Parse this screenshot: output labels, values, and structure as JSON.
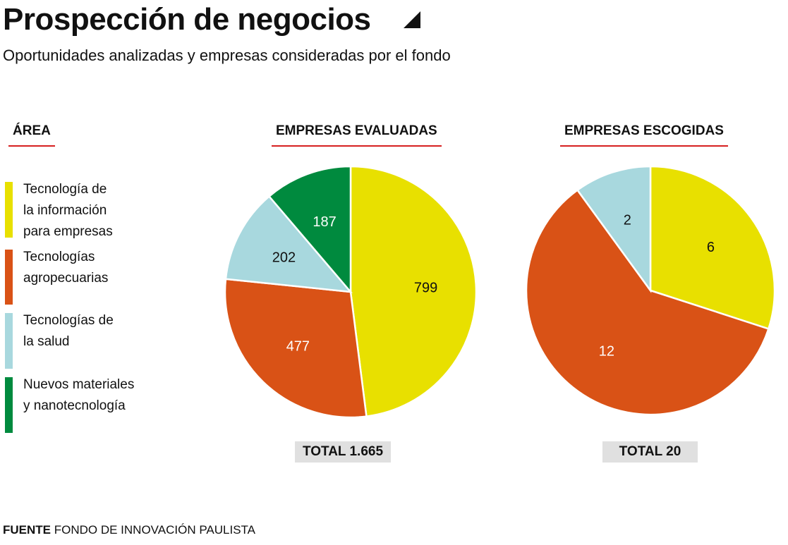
{
  "title": "Prospección de negocios",
  "subtitle": "Oportunidades analizadas y empresas consideradas por el fondo",
  "legend": {
    "heading": "ÁREA",
    "items": [
      {
        "label_lines": [
          "Tecnología de",
          "la información",
          "para empresas"
        ],
        "color": "#e8e000"
      },
      {
        "label_lines": [
          "Tecnologías",
          "agropecuarias"
        ],
        "color": "#d95216"
      },
      {
        "label_lines": [
          "Tecnologías de",
          "la salud"
        ],
        "color": "#a8d8de"
      },
      {
        "label_lines": [
          "Nuevos materiales",
          "y nanotecnología"
        ],
        "color": "#008a3e"
      }
    ]
  },
  "chart_data": [
    {
      "type": "pie",
      "title": "EMPRESAS EVALUADAS",
      "categories": [
        "Tecnología de la información para empresas",
        "Tecnologías agropecuarias",
        "Tecnologías de la salud",
        "Nuevos materiales y nanotecnología"
      ],
      "values": [
        799,
        477,
        202,
        187
      ],
      "labels": [
        "799",
        "477",
        "202",
        "187"
      ],
      "colors": [
        "#e8e000",
        "#d95216",
        "#a8d8de",
        "#008a3e"
      ],
      "label_colors": [
        "#111111",
        "#ffffff",
        "#111111",
        "#ffffff"
      ],
      "total_label": "TOTAL 1.665"
    },
    {
      "type": "pie",
      "title": "EMPRESAS ESCOGIDAS",
      "categories": [
        "Tecnología de la información para empresas",
        "Tecnologías agropecuarias",
        "Tecnologías de la salud",
        "Nuevos materiales y nanotecnología"
      ],
      "values": [
        6,
        12,
        2,
        0
      ],
      "labels": [
        "6",
        "12",
        "2",
        ""
      ],
      "colors": [
        "#e8e000",
        "#d95216",
        "#a8d8de",
        "#008a3e"
      ],
      "label_colors": [
        "#111111",
        "#ffffff",
        "#111111",
        "#ffffff"
      ],
      "total_label": "TOTAL 20"
    }
  ],
  "source": {
    "prefix": "FUENTE",
    "text": "FONDO DE INNOVACIÓN PAULISTA"
  }
}
